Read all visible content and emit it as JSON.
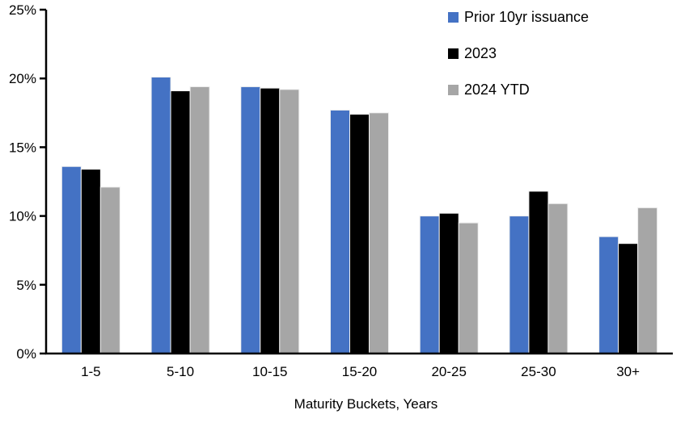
{
  "chart_data": {
    "type": "bar",
    "title": "",
    "xlabel": "Maturity Buckets, Years",
    "ylabel": "",
    "categories": [
      "1-5",
      "5-10",
      "10-15",
      "15-20",
      "20-25",
      "25-30",
      "30+"
    ],
    "series": [
      {
        "name": "Prior 10yr issuance",
        "color": "#4472C4",
        "values": [
          13.6,
          20.1,
          19.4,
          17.7,
          10.0,
          10.0,
          8.5
        ]
      },
      {
        "name": "2023",
        "color": "#000000",
        "values": [
          13.4,
          19.1,
          19.3,
          17.4,
          10.2,
          11.8,
          8.0
        ]
      },
      {
        "name": "2024 YTD",
        "color": "#A6A6A6",
        "values": [
          12.1,
          19.4,
          19.2,
          17.5,
          9.5,
          10.9,
          10.6
        ]
      }
    ],
    "ylim": [
      0,
      25
    ],
    "y_ticks": [
      0,
      5,
      10,
      15,
      20,
      25
    ],
    "y_tick_labels": [
      "0%",
      "5%",
      "10%",
      "15%",
      "20%",
      "25%"
    ],
    "grid": false,
    "legend_position": "top-right",
    "axis_color": "#000000",
    "background_color": "#FFFFFF"
  }
}
